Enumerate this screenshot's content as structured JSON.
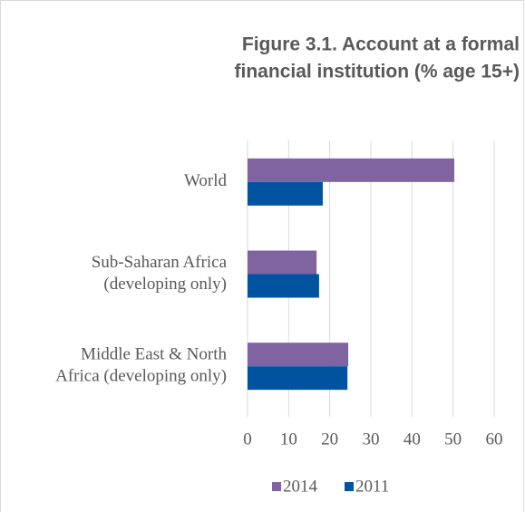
{
  "chart_data": {
    "type": "hbar",
    "title": [
      "Figure 3.1. Account at a formal",
      "financial institution (% age 15+)"
    ],
    "categories": [
      [
        "World"
      ],
      [
        "Sub-Saharan Africa",
        "(developing only)"
      ],
      [
        "Middle East & North",
        "Africa (developing only)"
      ]
    ],
    "series": [
      {
        "name": "2014",
        "color": "#8064a2",
        "values": [
          50.3,
          16.8,
          24.5
        ]
      },
      {
        "name": "2011",
        "color": "#00539f",
        "values": [
          18.3,
          17.4,
          24.3
        ]
      }
    ],
    "xlim": [
      0,
      60
    ],
    "xticks": [
      0,
      10,
      20,
      30,
      40,
      50,
      60
    ],
    "grid": true,
    "legend": "bottom"
  }
}
